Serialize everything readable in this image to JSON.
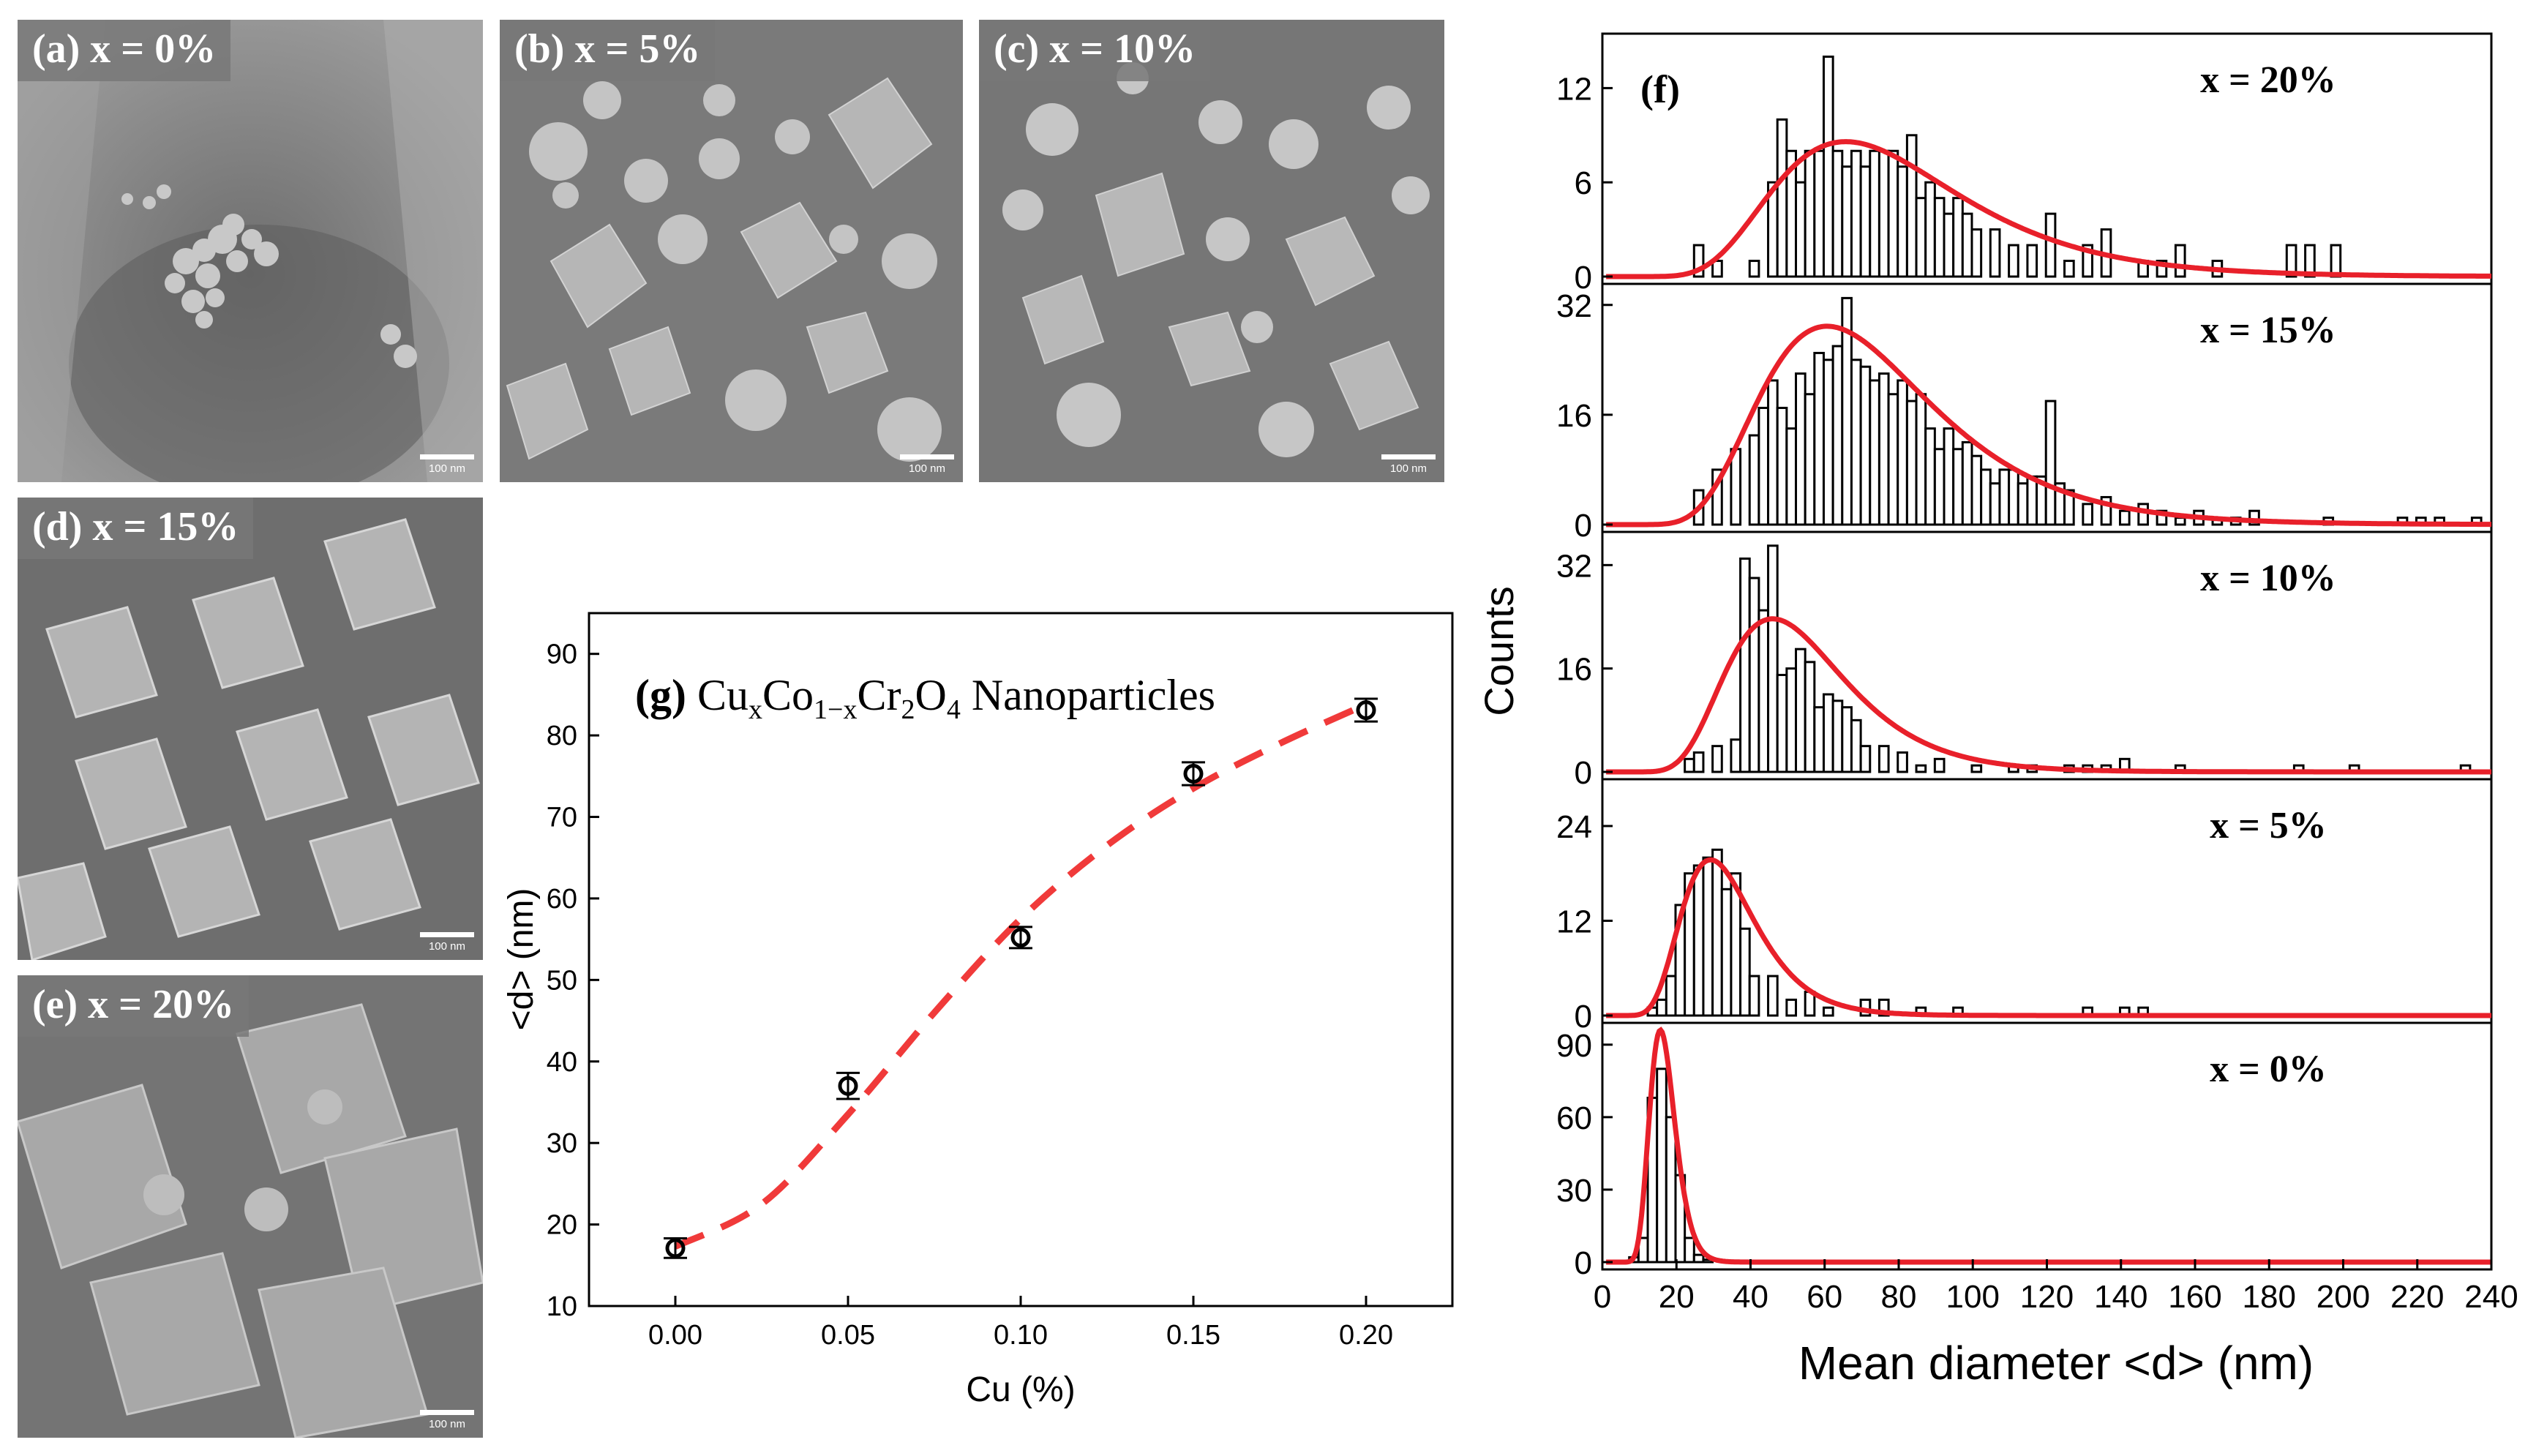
{
  "sem_panels": [
    {
      "label": "(a) x = 0%",
      "scale_bar": "100 nm"
    },
    {
      "label": "(b) x = 5%",
      "scale_bar": "100 nm"
    },
    {
      "label": "(c) x = 10%",
      "scale_bar": "100 nm"
    },
    {
      "label": "(d) x = 15%",
      "scale_bar": "100 nm"
    },
    {
      "label": "(e) x = 20%",
      "scale_bar": "100 nm"
    }
  ],
  "colors": {
    "fit_line": "#e8202a",
    "dashed_fit": "#f03a3a",
    "bars": "#000000",
    "sem_background": "#8e8e8e"
  },
  "chart_data": [
    {
      "id": "g",
      "type": "scatter",
      "title_prefix": "(g)",
      "title_formula": {
        "el1": "Cu",
        "sub1": "x",
        "el2": "Co",
        "sub2": "1−x",
        "el3": "Cr",
        "sub3": "2",
        "el4": "O",
        "sub4": "4",
        "suffix": " Nanoparticles"
      },
      "xlabel": "Cu (%)",
      "ylabel": "<d> (nm)",
      "xlim": [
        -0.025,
        0.225
      ],
      "ylim": [
        10,
        95
      ],
      "xticks": [
        0.0,
        0.05,
        0.1,
        0.15,
        0.2
      ],
      "xtick_labels": [
        "0.00",
        "0.05",
        "0.10",
        "0.15",
        "0.20"
      ],
      "yticks": [
        10,
        20,
        30,
        40,
        50,
        60,
        70,
        80,
        90
      ],
      "ytick_labels": [
        "10",
        "20",
        "30",
        "40",
        "50",
        "60",
        "70",
        "80",
        "90"
      ],
      "points": [
        {
          "x": 0.0,
          "y": 17.1,
          "err": 1.2
        },
        {
          "x": 0.05,
          "y": 37.0,
          "err": 1.6
        },
        {
          "x": 0.1,
          "y": 55.2,
          "err": 1.3
        },
        {
          "x": 0.15,
          "y": 75.3,
          "err": 1.4
        },
        {
          "x": 0.2,
          "y": 83.1,
          "err": 1.4
        }
      ],
      "fit_curve": [
        [
          0.0,
          17.3
        ],
        [
          0.025,
          22.5
        ],
        [
          0.05,
          33.5
        ],
        [
          0.075,
          46.0
        ],
        [
          0.1,
          57.5
        ],
        [
          0.125,
          66.5
        ],
        [
          0.15,
          73.5
        ],
        [
          0.175,
          79.0
        ],
        [
          0.2,
          83.8
        ]
      ]
    },
    {
      "id": "f",
      "type": "bar",
      "panel_label": "(f)",
      "xlabel": "Mean diameter <d> (nm)",
      "ylabel": "Counts",
      "xlim": [
        0,
        240
      ],
      "xticks": [
        0,
        20,
        40,
        60,
        80,
        100,
        120,
        140,
        160,
        180,
        200,
        220,
        240
      ],
      "xtick_labels": [
        "0",
        "20",
        "40",
        "60",
        "80",
        "100",
        "120",
        "140",
        "160",
        "180",
        "200",
        "220",
        "240"
      ],
      "bin_width": 2.5,
      "series": [
        {
          "name": "x = 20%",
          "ylim": [
            0,
            15
          ],
          "yticks": [
            0,
            6,
            12
          ],
          "ytick_labels": [
            "0",
            "6",
            "12"
          ],
          "bins": [
            [
              26,
              2
            ],
            [
              31,
              1
            ],
            [
              36,
              0
            ],
            [
              41,
              1
            ],
            [
              46,
              6
            ],
            [
              48.5,
              10
            ],
            [
              51,
              8
            ],
            [
              53.5,
              6
            ],
            [
              56,
              8
            ],
            [
              58.5,
              8
            ],
            [
              61,
              14
            ],
            [
              63.5,
              8
            ],
            [
              66,
              7
            ],
            [
              68.5,
              8
            ],
            [
              71,
              7
            ],
            [
              73.5,
              8
            ],
            [
              76,
              8
            ],
            [
              78.5,
              8
            ],
            [
              81,
              7
            ],
            [
              83.5,
              9
            ],
            [
              86,
              5
            ],
            [
              88.5,
              6
            ],
            [
              91,
              5
            ],
            [
              93.5,
              4
            ],
            [
              96,
              5
            ],
            [
              98.5,
              4
            ],
            [
              101,
              3
            ],
            [
              106,
              3
            ],
            [
              111,
              2
            ],
            [
              116,
              2
            ],
            [
              121,
              4
            ],
            [
              126,
              1
            ],
            [
              131,
              2
            ],
            [
              136,
              3
            ],
            [
              146,
              1
            ],
            [
              151,
              1
            ],
            [
              156,
              2
            ],
            [
              166,
              1
            ],
            [
              186,
              2
            ],
            [
              191,
              2
            ],
            [
              198,
              2
            ]
          ],
          "fit": {
            "mu": 4.33,
            "sigma": 0.38,
            "scale": 578
          }
        },
        {
          "name": "x = 15%",
          "ylim": [
            0,
            34
          ],
          "yticks": [
            0,
            16,
            32
          ],
          "ytick_labels": [
            "0",
            "16",
            "32"
          ],
          "bins": [
            [
              26,
              5
            ],
            [
              31,
              8
            ],
            [
              36,
              11
            ],
            [
              41,
              13
            ],
            [
              43.5,
              17
            ],
            [
              46,
              21
            ],
            [
              48.5,
              17
            ],
            [
              51,
              14
            ],
            [
              53.5,
              22
            ],
            [
              56,
              19
            ],
            [
              58.5,
              25
            ],
            [
              61,
              24
            ],
            [
              63.5,
              26
            ],
            [
              66,
              33
            ],
            [
              68.5,
              24
            ],
            [
              71,
              23
            ],
            [
              73.5,
              21
            ],
            [
              76,
              22
            ],
            [
              78.5,
              19
            ],
            [
              81,
              21
            ],
            [
              83.5,
              18
            ],
            [
              86,
              19
            ],
            [
              88.5,
              14
            ],
            [
              91,
              11
            ],
            [
              93.5,
              14
            ],
            [
              96,
              11
            ],
            [
              98.5,
              12
            ],
            [
              101,
              10
            ],
            [
              103.5,
              8
            ],
            [
              106,
              6
            ],
            [
              108.5,
              8
            ],
            [
              111,
              8
            ],
            [
              113.5,
              6
            ],
            [
              116,
              7
            ],
            [
              118.5,
              7
            ],
            [
              121,
              18
            ],
            [
              123.5,
              6
            ],
            [
              126,
              5
            ],
            [
              131,
              3
            ],
            [
              136,
              4
            ],
            [
              141,
              2
            ],
            [
              146,
              3
            ],
            [
              151,
              2
            ],
            [
              156,
              1
            ],
            [
              161,
              2
            ],
            [
              166,
              1
            ],
            [
              171,
              1
            ],
            [
              176,
              2
            ],
            [
              196,
              1
            ],
            [
              201,
              0
            ],
            [
              216,
              1
            ],
            [
              221,
              1
            ],
            [
              226,
              1
            ],
            [
              236,
              1
            ]
          ],
          "fit": {
            "mu": 4.25,
            "sigma": 0.38,
            "scale": 1795
          }
        },
        {
          "name": "x = 10%",
          "ylim": [
            0,
            36
          ],
          "yticks": [
            0,
            16,
            32
          ],
          "ytick_labels": [
            "0",
            "16",
            "32"
          ],
          "bins": [
            [
              23.5,
              2
            ],
            [
              26,
              3
            ],
            [
              31,
              4
            ],
            [
              36,
              5
            ],
            [
              38.5,
              33
            ],
            [
              41,
              30
            ],
            [
              43.5,
              25
            ],
            [
              46,
              35
            ],
            [
              48.5,
              15
            ],
            [
              51,
              16
            ],
            [
              53.5,
              19
            ],
            [
              56,
              17
            ],
            [
              58.5,
              10
            ],
            [
              61,
              12
            ],
            [
              63.5,
              11
            ],
            [
              66,
              10
            ],
            [
              68.5,
              8
            ],
            [
              71,
              4
            ],
            [
              76,
              4
            ],
            [
              81,
              3
            ],
            [
              86,
              1
            ],
            [
              91,
              2
            ],
            [
              101,
              1
            ],
            [
              111,
              1
            ],
            [
              116,
              1
            ],
            [
              126,
              1
            ],
            [
              131,
              1
            ],
            [
              136,
              1
            ],
            [
              141,
              2
            ],
            [
              156,
              1
            ],
            [
              188,
              1
            ],
            [
              203,
              1
            ],
            [
              233,
              1
            ]
          ],
          "fit": {
            "mu": 3.95,
            "sigma": 0.35,
            "scale": 1015
          }
        },
        {
          "name": "x = 5%",
          "ylim": [
            0,
            29
          ],
          "yticks": [
            0,
            12,
            24
          ],
          "ytick_labels": [
            "0",
            "12",
            "24"
          ],
          "bins": [
            [
              13.5,
              1
            ],
            [
              16,
              2
            ],
            [
              18.5,
              5
            ],
            [
              21,
              14
            ],
            [
              23.5,
              18
            ],
            [
              26,
              19
            ],
            [
              28.5,
              20
            ],
            [
              31,
              21
            ],
            [
              33.5,
              16
            ],
            [
              36,
              18
            ],
            [
              38.5,
              11
            ],
            [
              41,
              5
            ],
            [
              46,
              5
            ],
            [
              51,
              2
            ],
            [
              56,
              3
            ],
            [
              61,
              1
            ],
            [
              71,
              2
            ],
            [
              76,
              2
            ],
            [
              86,
              1
            ],
            [
              96,
              1
            ],
            [
              131,
              1
            ],
            [
              141,
              1
            ],
            [
              146,
              1
            ]
          ],
          "fit": {
            "mu": 3.49,
            "sigma": 0.34,
            "scale": 520
          }
        },
        {
          "name": "x = 0%",
          "ylim": [
            0,
            96
          ],
          "yticks": [
            0,
            30,
            60,
            90
          ],
          "ytick_labels": [
            "0",
            "30",
            "60",
            "90"
          ],
          "bins": [
            [
              8.5,
              2
            ],
            [
              11,
              10
            ],
            [
              13.5,
              68
            ],
            [
              16,
              80
            ],
            [
              18.5,
              60
            ],
            [
              21,
              36
            ],
            [
              23.5,
              10
            ],
            [
              26,
              3
            ],
            [
              28.5,
              1
            ]
          ],
          "fit": {
            "mu": 2.8,
            "sigma": 0.22,
            "scale": 850
          }
        }
      ]
    }
  ]
}
